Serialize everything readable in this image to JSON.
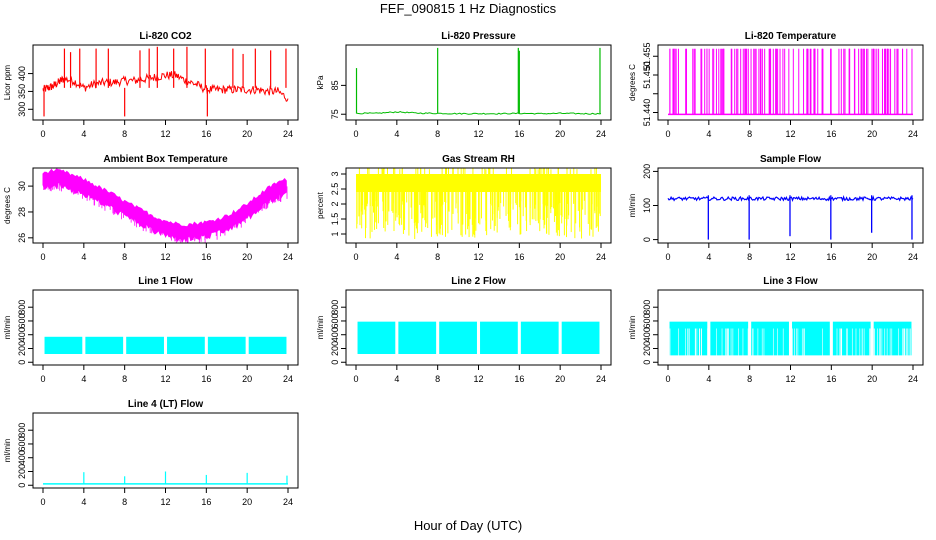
{
  "figure": {
    "title": "FEF_090815  1 Hz Diagnostics",
    "xlabel": "Hour of Day (UTC)"
  },
  "chart_data": [
    {
      "type": "line",
      "title": "Li-820 CO2",
      "ylabel": "Licor ppm",
      "color": "#ff0000",
      "xlim": [
        0,
        24
      ],
      "xticks": [
        0,
        4,
        8,
        12,
        16,
        20,
        24
      ],
      "ylim": [
        270,
        480
      ],
      "yticks": [
        300,
        350,
        400
      ],
      "x": [
        0,
        0.5,
        1,
        1.5,
        2,
        3,
        4,
        5,
        6,
        7,
        8,
        9,
        10,
        11,
        12,
        13,
        14,
        15,
        16,
        17,
        18,
        19,
        20,
        21,
        22,
        23,
        24
      ],
      "y": [
        355,
        360,
        365,
        375,
        385,
        380,
        360,
        370,
        375,
        375,
        380,
        380,
        385,
        390,
        395,
        395,
        380,
        370,
        355,
        355,
        355,
        355,
        355,
        355,
        350,
        350,
        330
      ],
      "spikes": [
        {
          "x": 2.1,
          "y": 470
        },
        {
          "x": 2.7,
          "y": 460
        },
        {
          "x": 3.6,
          "y": 470
        },
        {
          "x": 5.2,
          "y": 470
        },
        {
          "x": 6.4,
          "y": 470
        },
        {
          "x": 8.0,
          "y": 280
        },
        {
          "x": 9.5,
          "y": 465
        },
        {
          "x": 10.4,
          "y": 470
        },
        {
          "x": 11.2,
          "y": 475
        },
        {
          "x": 12.8,
          "y": 470
        },
        {
          "x": 14.1,
          "y": 475
        },
        {
          "x": 15.9,
          "y": 470
        },
        {
          "x": 16.1,
          "y": 280
        },
        {
          "x": 18.6,
          "y": 470
        },
        {
          "x": 19.6,
          "y": 455
        },
        {
          "x": 20.8,
          "y": 470
        },
        {
          "x": 22.3,
          "y": 465
        },
        {
          "x": 23.8,
          "y": 470
        },
        {
          "x": 0.1,
          "y": 280
        }
      ]
    },
    {
      "type": "line",
      "title": "Li-820 Pressure",
      "ylabel": "kPa",
      "color": "#00bb00",
      "xlim": [
        0,
        24
      ],
      "xticks": [
        0,
        4,
        8,
        12,
        16,
        20,
        24
      ],
      "ylim": [
        73,
        99
      ],
      "yticks": [
        75,
        85
      ],
      "x": [
        0,
        2,
        4,
        6,
        8,
        10,
        12,
        14,
        16,
        18,
        20,
        22,
        24
      ],
      "y": [
        75.3,
        75.3,
        75.8,
        75.4,
        75.3,
        75.2,
        75.2,
        75.2,
        75.3,
        75.2,
        75.3,
        75.2,
        75.2
      ],
      "spikes": [
        {
          "x": 0.05,
          "y": 91
        },
        {
          "x": 8.0,
          "y": 98
        },
        {
          "x": 15.9,
          "y": 98
        },
        {
          "x": 16.0,
          "y": 97
        },
        {
          "x": 23.9,
          "y": 98
        }
      ]
    },
    {
      "type": "line",
      "title": "Li-820 Temperature",
      "ylabel": "degrees C",
      "color": "#ff00ff",
      "xlim": [
        0,
        24
      ],
      "xticks": [
        0,
        4,
        8,
        12,
        16,
        20,
        24
      ],
      "ylim": [
        51.438,
        51.458
      ],
      "yticks": [
        51.44,
        51.445,
        51.45,
        51.455
      ],
      "ytick_labels": [
        "51.440",
        "",
        "51.450",
        "51.455"
      ],
      "baseline": 51.4395,
      "high": 51.457,
      "spike_count": 120
    },
    {
      "type": "line",
      "title": "Ambient Box Temperature",
      "ylabel": "degrees C",
      "color": "#ff00ff",
      "xlim": [
        0,
        24
      ],
      "xticks": [
        0,
        4,
        8,
        12,
        16,
        20,
        24
      ],
      "ylim": [
        25.6,
        31.4
      ],
      "yticks": [
        26,
        28,
        30
      ],
      "x": [
        0,
        1,
        2,
        3,
        4,
        5,
        6,
        7,
        8,
        9,
        10,
        11,
        12,
        13,
        14,
        15,
        16,
        17,
        18,
        19,
        20,
        21,
        22,
        23,
        24
      ],
      "y": [
        30.5,
        30.7,
        30.6,
        30.3,
        30.0,
        29.6,
        29.2,
        28.8,
        28.3,
        27.9,
        27.5,
        27.1,
        26.8,
        26.6,
        26.5,
        26.6,
        26.7,
        26.9,
        27.2,
        27.6,
        28.1,
        28.7,
        29.3,
        29.8,
        30.0
      ]
    },
    {
      "type": "line",
      "title": "Gas Stream RH",
      "ylabel": "percent",
      "color": "#ffff00",
      "xlim": [
        0,
        24
      ],
      "xticks": [
        0,
        4,
        8,
        12,
        16,
        20,
        24
      ],
      "ylim": [
        0.7,
        3.2
      ],
      "yticks": [
        1.0,
        1.5,
        2.0,
        2.5,
        3.0
      ],
      "band_low": 1.0,
      "band_high": 3.0
    },
    {
      "type": "line",
      "title": "Sample Flow",
      "ylabel": "ml/min",
      "color": "#0000ff",
      "xlim": [
        0,
        24
      ],
      "xticks": [
        0,
        4,
        8,
        12,
        16,
        20,
        24
      ],
      "ylim": [
        -10,
        210
      ],
      "yticks": [
        0,
        100,
        200
      ],
      "level": 120,
      "dips": [
        {
          "x": 3.95,
          "y": 0
        },
        {
          "x": 7.95,
          "y": 0
        },
        {
          "x": 11.95,
          "y": 10
        },
        {
          "x": 15.95,
          "y": 0
        },
        {
          "x": 19.95,
          "y": 20
        },
        {
          "x": 23.9,
          "y": 0
        }
      ]
    },
    {
      "type": "area",
      "title": "Line 1 Flow",
      "ylabel": "ml/min",
      "color": "#00ffff",
      "xlim": [
        0,
        24
      ],
      "xticks": [
        0,
        4,
        8,
        12,
        16,
        20,
        24
      ],
      "ylim": [
        -40,
        1050
      ],
      "yticks": [
        0,
        200,
        400,
        600,
        800
      ],
      "band_low": 120,
      "band_high": 370,
      "gaps": [
        0,
        4,
        8,
        12,
        16,
        20,
        24
      ]
    },
    {
      "type": "area",
      "title": "Line 2 Flow",
      "ylabel": "ml/min",
      "color": "#00ffff",
      "xlim": [
        0,
        24
      ],
      "xticks": [
        0,
        4,
        8,
        12,
        16,
        20,
        24
      ],
      "ylim": [
        -40,
        1050
      ],
      "yticks": [
        0,
        200,
        400,
        600,
        800
      ],
      "band_low": 120,
      "band_high": 590,
      "gaps": [
        0,
        4,
        8,
        12,
        16,
        20,
        24
      ]
    },
    {
      "type": "area",
      "title": "Line 3 Flow",
      "ylabel": "ml/min",
      "color": "#00ffff",
      "xlim": [
        0,
        24
      ],
      "xticks": [
        0,
        4,
        8,
        12,
        16,
        20,
        24
      ],
      "ylim": [
        -40,
        1050
      ],
      "yticks": [
        0,
        200,
        400,
        600,
        800
      ],
      "band_low": 100,
      "band_high": 590,
      "gaps": [
        0,
        4,
        8,
        12,
        16,
        20,
        24
      ]
    },
    {
      "type": "line",
      "title": "Line 4 (LT) Flow",
      "ylabel": "ml/min",
      "color": "#00ffff",
      "xlim": [
        0,
        24
      ],
      "xticks": [
        0,
        4,
        8,
        12,
        16,
        20,
        24
      ],
      "ylim": [
        -40,
        1050
      ],
      "yticks": [
        0,
        200,
        400,
        600,
        800
      ],
      "level": 20,
      "spikes": [
        {
          "x": 4.0,
          "y": 190
        },
        {
          "x": 8.0,
          "y": 130
        },
        {
          "x": 12.0,
          "y": 200
        },
        {
          "x": 16.0,
          "y": 150
        },
        {
          "x": 20.0,
          "y": 180
        },
        {
          "x": 23.9,
          "y": 140
        }
      ]
    }
  ]
}
